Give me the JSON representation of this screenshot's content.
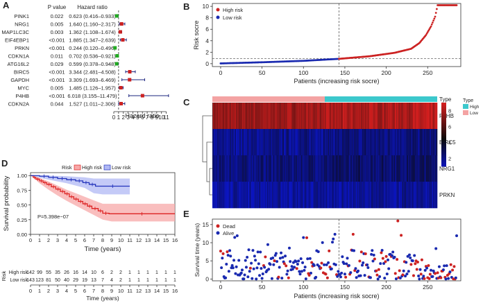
{
  "panels": {
    "A": {
      "label": "A",
      "headers": {
        "gene": "",
        "pvalue": "P value",
        "hr": "Hazard ratio"
      },
      "xlabel": "Hazard ratio",
      "ticks": [
        "0",
        "1",
        "2",
        "3",
        "4",
        "5",
        "6",
        "7",
        "8",
        "9",
        "10",
        "11"
      ]
    },
    "B": {
      "label": "B"
    },
    "C": {
      "label": "C"
    },
    "D": {
      "label": "D"
    },
    "E": {
      "label": "E"
    }
  },
  "chart_data": [
    {
      "id": "A",
      "type": "forest",
      "title": "",
      "xlabel": "Hazard ratio",
      "xlim": [
        0,
        11.5
      ],
      "reference_line": 1,
      "rows": [
        {
          "gene": "PINK1",
          "pvalue": "0.022",
          "hr_text": "0.623 (0.416–0.933)",
          "hr": 0.623,
          "lo": 0.416,
          "hi": 0.933
        },
        {
          "gene": "NRG1",
          "pvalue": "0.005",
          "hr_text": "1.640 (1.160–2.317)",
          "hr": 1.64,
          "lo": 1.16,
          "hi": 2.317
        },
        {
          "gene": "MAP1LC3C",
          "pvalue": "0.003",
          "hr_text": "1.362 (1.108–1.674)",
          "hr": 1.362,
          "lo": 1.108,
          "hi": 1.674
        },
        {
          "gene": "EIF4EBP1",
          "pvalue": "<0.001",
          "hr_text": "1.885 (1.347–2.639)",
          "hr": 1.885,
          "lo": 1.347,
          "hi": 2.639
        },
        {
          "gene": "PRKN",
          "pvalue": "<0.001",
          "hr_text": "0.244 (0.120–0.496)",
          "hr": 0.244,
          "lo": 0.12,
          "hi": 0.496
        },
        {
          "gene": "CDKN1A",
          "pvalue": "0.011",
          "hr_text": "0.702 (0.536–0.921)",
          "hr": 0.702,
          "lo": 0.536,
          "hi": 0.921
        },
        {
          "gene": "ATG16L2",
          "pvalue": "0.029",
          "hr_text": "0.599 (0.378–0.948)",
          "hr": 0.599,
          "lo": 0.378,
          "hi": 0.948
        },
        {
          "gene": "BIRC5",
          "pvalue": "<0.001",
          "hr_text": "3.344 (2.481–4.508)",
          "hr": 3.344,
          "lo": 2.481,
          "hi": 4.508
        },
        {
          "gene": "GAPDH",
          "pvalue": "<0.001",
          "hr_text": "3.309 (1.693–6.469)",
          "hr": 3.309,
          "lo": 1.693,
          "hi": 6.469
        },
        {
          "gene": "MYC",
          "pvalue": "0.005",
          "hr_text": "1.485 (1.126–1.957)",
          "hr": 1.485,
          "lo": 1.126,
          "hi": 1.957
        },
        {
          "gene": "P4HB",
          "pvalue": "<0.001",
          "hr_text": "6.018 (3.155–11.479)",
          "hr": 6.018,
          "lo": 3.155,
          "hi": 11.479
        },
        {
          "gene": "CDKN2A",
          "pvalue": "0.044",
          "hr_text": "1.527 (1.011–2.306)",
          "hr": 1.527,
          "lo": 1.011,
          "hi": 2.306
        }
      ],
      "colors": {
        "protective": "#22aa22",
        "risk": "#cc2222",
        "ci": "#1a237e"
      }
    },
    {
      "id": "B",
      "type": "scatter",
      "title": "",
      "xlabel": "Patients (increasing risk socre)",
      "ylabel": "Risk socre",
      "xlim": [
        -10,
        290
      ],
      "ylim": [
        -0.5,
        10.5
      ],
      "xticks": [
        0,
        50,
        100,
        150,
        200,
        250
      ],
      "yticks": [
        0,
        2,
        4,
        6,
        8,
        10
      ],
      "cutoff_index": 143,
      "cutoff_value": 0.9,
      "n_patients": 286,
      "series": [
        {
          "name": "High risk",
          "color": "#cc2222"
        },
        {
          "name": "Low risk",
          "color": "#1a2ab0"
        }
      ],
      "anchor_points": [
        [
          0,
          0.05
        ],
        [
          50,
          0.25
        ],
        [
          100,
          0.5
        ],
        [
          143,
          0.85
        ],
        [
          180,
          1.3
        ],
        [
          210,
          1.9
        ],
        [
          230,
          2.6
        ],
        [
          240,
          3.6
        ],
        [
          248,
          5.0
        ],
        [
          254,
          6.5
        ],
        [
          259,
          8.2
        ],
        [
          262,
          10.2
        ],
        [
          285,
          10.2
        ]
      ]
    },
    {
      "id": "C",
      "type": "heatmap",
      "title": "",
      "rows": [
        "P4HB",
        "BIRC5",
        "NRG1",
        "PRKN"
      ],
      "annotation_label": "Type",
      "annotation_groups": [
        {
          "name": "Low",
          "count": 143,
          "color": "#f4a3a3"
        },
        {
          "name": "High",
          "count": 143,
          "color": "#3cc8cc"
        }
      ],
      "legend_title": "Type",
      "legend_items": [
        "High",
        "Low"
      ],
      "colorbar_ticks": [
        2,
        4,
        6,
        8
      ],
      "colorbar_range": [
        1,
        9
      ]
    },
    {
      "id": "D",
      "type": "line",
      "title": "",
      "xlabel": "Time (years)",
      "ylabel": "Survival probability",
      "xlim": [
        0,
        16
      ],
      "ylim": [
        0,
        1.05
      ],
      "xticks": [
        0,
        1,
        2,
        3,
        4,
        5,
        6,
        7,
        8,
        9,
        10,
        11,
        12,
        13,
        14,
        15,
        16
      ],
      "yticks": [
        0.0,
        0.25,
        0.5,
        0.75,
        1.0
      ],
      "ytick_labels": [
        "0.00",
        "0.25",
        "0.50",
        "0.75",
        "1.00"
      ],
      "legend_title": "Risk",
      "pvalue_text": "P=5.398e−07",
      "series": [
        {
          "name": "High risk",
          "color": "#dd2222",
          "band": "#f7a8a8",
          "steps": [
            [
              0,
              1.0
            ],
            [
              0.3,
              0.97
            ],
            [
              0.6,
              0.94
            ],
            [
              1.0,
              0.91
            ],
            [
              1.4,
              0.88
            ],
            [
              1.8,
              0.85
            ],
            [
              2.3,
              0.81
            ],
            [
              2.8,
              0.77
            ],
            [
              3.3,
              0.73
            ],
            [
              3.8,
              0.69
            ],
            [
              4.3,
              0.64
            ],
            [
              4.8,
              0.6
            ],
            [
              5.3,
              0.56
            ],
            [
              5.8,
              0.52
            ],
            [
              6.3,
              0.48
            ],
            [
              6.8,
              0.44
            ],
            [
              7.5,
              0.4
            ],
            [
              8.0,
              0.36
            ],
            [
              8.7,
              0.35
            ],
            [
              16,
              0.35
            ]
          ],
          "lower": [
            [
              0,
              1.0
            ],
            [
              1,
              0.87
            ],
            [
              2,
              0.76
            ],
            [
              3,
              0.66
            ],
            [
              4,
              0.57
            ],
            [
              5,
              0.49
            ],
            [
              6,
              0.41
            ],
            [
              7,
              0.33
            ],
            [
              8,
              0.25
            ],
            [
              9,
              0.22
            ],
            [
              16,
              0.22
            ]
          ],
          "upper": [
            [
              0,
              1.0
            ],
            [
              1,
              0.96
            ],
            [
              2,
              0.9
            ],
            [
              3,
              0.83
            ],
            [
              4,
              0.76
            ],
            [
              5,
              0.7
            ],
            [
              6,
              0.64
            ],
            [
              7,
              0.58
            ],
            [
              8,
              0.52
            ],
            [
              9,
              0.52
            ],
            [
              16,
              0.52
            ]
          ],
          "at_risk": [
            142,
            99,
            55,
            35,
            26,
            16,
            14,
            10,
            6,
            2,
            2,
            1,
            1,
            1,
            1,
            1,
            1
          ]
        },
        {
          "name": "Low risk",
          "color": "#2233bb",
          "band": "#b0b8f4",
          "steps": [
            [
              0,
              1.0
            ],
            [
              1.0,
              0.99
            ],
            [
              2.0,
              0.97
            ],
            [
              3.0,
              0.95
            ],
            [
              4.0,
              0.93
            ],
            [
              5.0,
              0.91
            ],
            [
              5.8,
              0.88
            ],
            [
              6.5,
              0.85
            ],
            [
              7.2,
              0.82
            ],
            [
              11,
              0.82
            ]
          ],
          "lower": [
            [
              0,
              1.0
            ],
            [
              2,
              0.93
            ],
            [
              4,
              0.87
            ],
            [
              6,
              0.79
            ],
            [
              7,
              0.7
            ],
            [
              8,
              0.68
            ],
            [
              11,
              0.68
            ]
          ],
          "upper": [
            [
              0,
              1.0
            ],
            [
              2,
              1.0
            ],
            [
              4,
              0.99
            ],
            [
              6,
              0.97
            ],
            [
              7,
              0.95
            ],
            [
              8,
              0.95
            ],
            [
              11,
              0.95
            ]
          ],
          "at_risk": [
            143,
            123,
            81,
            50,
            40,
            29,
            19,
            13,
            7,
            4,
            2,
            1,
            1,
            1,
            1,
            1,
            1
          ]
        }
      ],
      "risk_table_title": "Risk",
      "risk_table_xlabel": "Time (years)"
    },
    {
      "id": "E",
      "type": "scatter",
      "title": "",
      "xlabel": "Patients (increasing risk socre)",
      "ylabel": "Survival time (years)",
      "xlim": [
        -10,
        290
      ],
      "ylim": [
        -0.5,
        16.5
      ],
      "xticks": [
        0,
        50,
        100,
        150,
        200,
        250
      ],
      "yticks": [
        0,
        5,
        10,
        15
      ],
      "cutoff_index": 143,
      "series": [
        {
          "name": "Dead",
          "color": "#cc2222"
        },
        {
          "name": "Alive",
          "color": "#1a2ab0"
        }
      ],
      "n_points": 286
    }
  ]
}
